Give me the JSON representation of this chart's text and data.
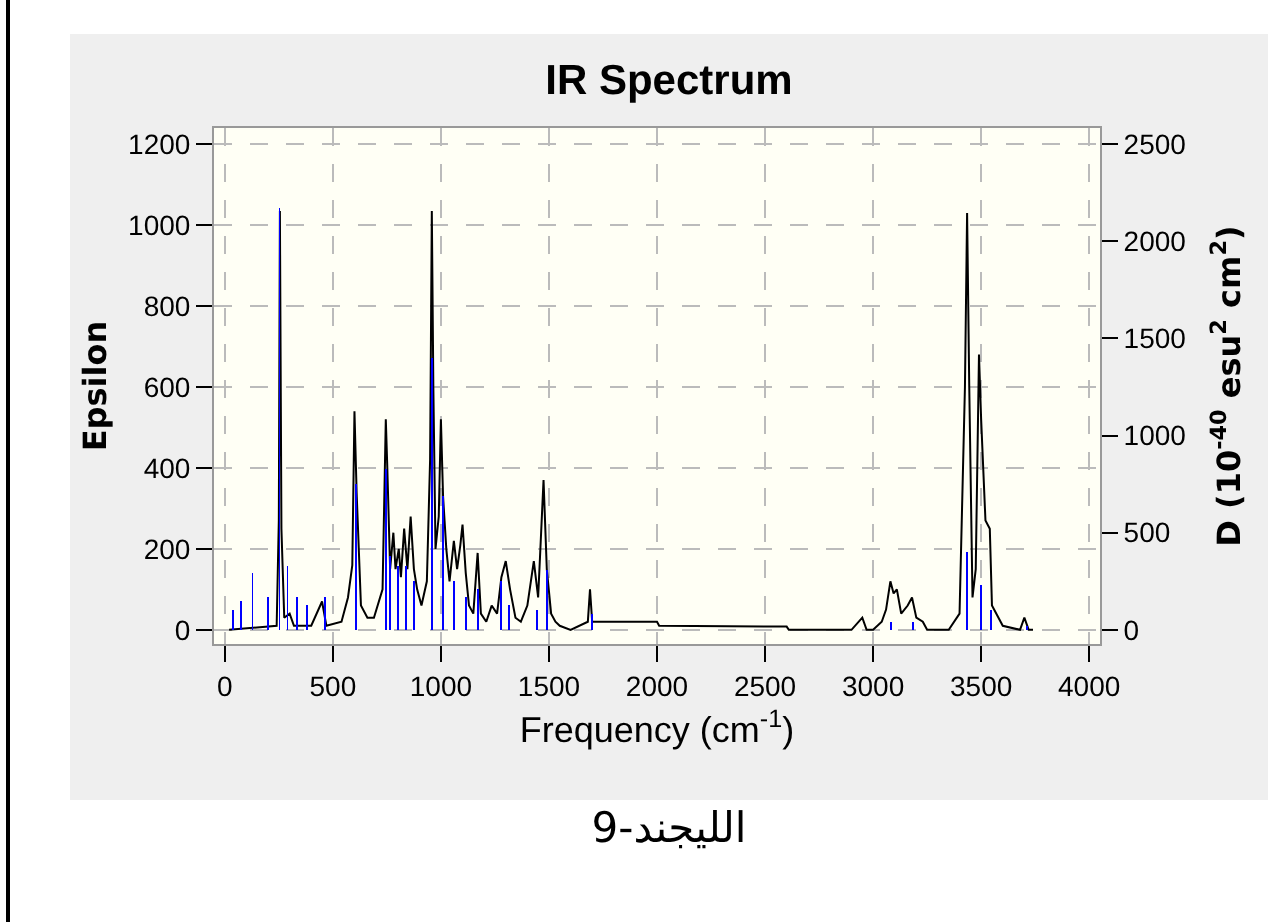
{
  "chart_data": {
    "type": "line",
    "title": "IR Spectrum",
    "xlabel": "Frequency (cm$^{-1}$)",
    "ylabel": "Epsilon",
    "y2label": "D (10$^{-40}$ esu$^{2}$ cm$^{2}$)",
    "annotations": [
      "الليجند-9"
    ],
    "xlim": [
      -50,
      4050
    ],
    "xticks": [
      0,
      500,
      1000,
      1500,
      2000,
      2500,
      3000,
      3500,
      4000
    ],
    "ylim": [
      -35,
      1240
    ],
    "yticks": [
      0,
      200,
      400,
      600,
      800,
      1000,
      1200
    ],
    "y2lim": [
      -73,
      2583
    ],
    "y2ticks": [
      0,
      500,
      1000,
      1500,
      2000,
      2500
    ],
    "grid": true,
    "legend": false,
    "marker": "none",
    "line_style": "solid",
    "series": [
      {
        "type": "bar",
        "axis": "y2",
        "color": "#0000ff",
        "x": [
          40,
          77,
          128,
          198,
          253,
          290,
          334,
          381,
          462,
          605,
          744,
          766,
          803,
          840,
          876,
          957,
          1008,
          1060,
          1115,
          1170,
          1280,
          1316,
          1445,
          1489,
          1701,
          3083,
          3186,
          3435,
          3498,
          3545,
          3710
        ],
        "values": [
          100,
          150,
          290,
          170,
          2170,
          330,
          170,
          130,
          170,
          750,
          830,
          380,
          330,
          330,
          250,
          1400,
          690,
          250,
          170,
          210,
          250,
          130,
          100,
          310,
          80,
          40,
          40,
          400,
          230,
          100,
          20
        ]
      },
      {
        "color": "#000000",
        "x": [
          20,
          240,
          250,
          255,
          262,
          275,
          300,
          320,
          400,
          450,
          470,
          540,
          570,
          590,
          600,
          610,
          630,
          660,
          690,
          730,
          745,
          752,
          765,
          780,
          790,
          805,
          815,
          830,
          845,
          860,
          875,
          890,
          910,
          935,
          950,
          958,
          965,
          975,
          990,
          1000,
          1010,
          1025,
          1040,
          1060,
          1075,
          1090,
          1100,
          1115,
          1130,
          1150,
          1170,
          1185,
          1210,
          1235,
          1260,
          1280,
          1300,
          1320,
          1345,
          1370,
          1400,
          1430,
          1450,
          1475,
          1490,
          1510,
          1530,
          1550,
          1600,
          1680,
          1690,
          1700,
          1750,
          2000,
          2010,
          2600,
          2610,
          2900,
          2950,
          2970,
          3000,
          3040,
          3060,
          3080,
          3095,
          3110,
          3130,
          3160,
          3180,
          3200,
          3230,
          3250,
          3350,
          3400,
          3425,
          3435,
          3445,
          3460,
          3475,
          3490,
          3500,
          3520,
          3540,
          3550,
          3600,
          3680,
          3700,
          3720,
          3740
        ],
        "values": [
          0,
          10,
          270,
          1035,
          250,
          30,
          40,
          10,
          10,
          70,
          10,
          20,
          80,
          160,
          540,
          340,
          60,
          30,
          30,
          100,
          520,
          400,
          150,
          240,
          150,
          200,
          130,
          250,
          150,
          280,
          150,
          100,
          60,
          120,
          420,
          1035,
          600,
          200,
          280,
          520,
          330,
          200,
          120,
          220,
          150,
          210,
          260,
          140,
          60,
          40,
          190,
          40,
          20,
          60,
          40,
          130,
          170,
          100,
          30,
          20,
          60,
          170,
          80,
          370,
          150,
          40,
          20,
          10,
          0,
          20,
          100,
          20,
          20,
          20,
          10,
          8,
          0,
          0,
          30,
          0,
          0,
          20,
          50,
          120,
          90,
          100,
          40,
          60,
          80,
          30,
          20,
          0,
          0,
          40,
          600,
          1030,
          600,
          80,
          150,
          680,
          520,
          270,
          250,
          60,
          10,
          0,
          30,
          0,
          0
        ]
      }
    ]
  }
}
